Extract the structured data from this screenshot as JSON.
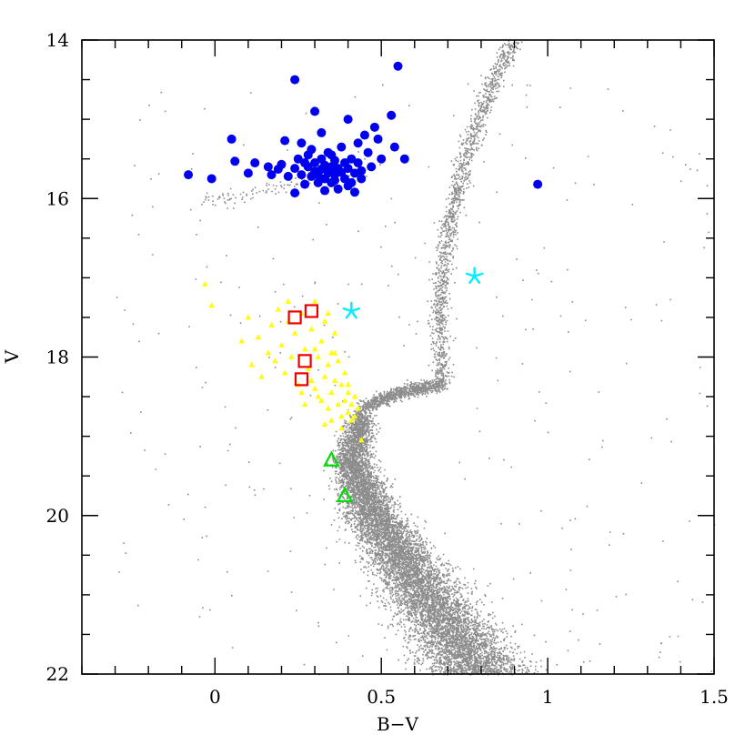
{
  "chart_data": {
    "type": "scatter",
    "title": "",
    "xlabel": "B−V",
    "ylabel": "V",
    "xlim": [
      -0.4,
      1.5
    ],
    "ylim": [
      22,
      14
    ],
    "y_inverted": true,
    "grid": false,
    "legend": "none",
    "x_ticks": [
      {
        "value": 0,
        "label": "0"
      },
      {
        "value": 0.5,
        "label": "0.5"
      },
      {
        "value": 1,
        "label": "1"
      },
      {
        "value": 1.5,
        "label": "1.5"
      }
    ],
    "y_ticks": [
      {
        "value": 14,
        "label": "14"
      },
      {
        "value": 16,
        "label": "16"
      },
      {
        "value": 18,
        "label": "18"
      },
      {
        "value": 20,
        "label": "20"
      },
      {
        "value": 22,
        "label": "22"
      }
    ],
    "colors": {
      "field_stars": "#8c8c8c",
      "horizontal_branch": "#0000ee",
      "blue_stragglers": "#ffff00",
      "open_squares": "#ee0000",
      "open_triangles": "#00dd00",
      "asterisks": "#00eeff"
    },
    "series": [
      {
        "marker": "filled-circle",
        "color": "#0000ee",
        "points": [
          [
            -0.08,
            15.7
          ],
          [
            -0.01,
            15.75
          ],
          [
            0.05,
            15.25
          ],
          [
            0.06,
            15.53
          ],
          [
            0.1,
            15.68
          ],
          [
            0.12,
            15.55
          ],
          [
            0.16,
            15.6
          ],
          [
            0.17,
            15.7
          ],
          [
            0.19,
            15.63
          ],
          [
            0.2,
            15.57
          ],
          [
            0.21,
            15.27
          ],
          [
            0.22,
            15.72
          ],
          [
            0.24,
            14.5
          ],
          [
            0.24,
            15.62
          ],
          [
            0.25,
            15.5
          ],
          [
            0.26,
            15.7
          ],
          [
            0.26,
            15.3
          ],
          [
            0.27,
            15.82
          ],
          [
            0.28,
            15.6
          ],
          [
            0.28,
            15.45
          ],
          [
            0.29,
            15.38
          ],
          [
            0.29,
            15.72
          ],
          [
            0.3,
            14.9
          ],
          [
            0.3,
            15.55
          ],
          [
            0.3,
            15.66
          ],
          [
            0.31,
            15.8
          ],
          [
            0.31,
            15.7
          ],
          [
            0.32,
            15.5
          ],
          [
            0.32,
            15.63
          ],
          [
            0.32,
            15.17
          ],
          [
            0.33,
            15.58
          ],
          [
            0.33,
            15.75
          ],
          [
            0.34,
            15.68
          ],
          [
            0.34,
            15.42
          ],
          [
            0.35,
            15.6
          ],
          [
            0.35,
            15.8
          ],
          [
            0.36,
            15.7
          ],
          [
            0.36,
            15.52
          ],
          [
            0.37,
            15.62
          ],
          [
            0.37,
            15.88
          ],
          [
            0.38,
            15.35
          ],
          [
            0.38,
            15.67
          ],
          [
            0.39,
            15.75
          ],
          [
            0.39,
            15.55
          ],
          [
            0.4,
            15.0
          ],
          [
            0.4,
            15.62
          ],
          [
            0.41,
            15.8
          ],
          [
            0.41,
            15.5
          ],
          [
            0.42,
            15.92
          ],
          [
            0.42,
            15.68
          ],
          [
            0.43,
            15.3
          ],
          [
            0.43,
            15.55
          ],
          [
            0.44,
            15.75
          ],
          [
            0.45,
            15.2
          ],
          [
            0.46,
            15.42
          ],
          [
            0.47,
            15.6
          ],
          [
            0.48,
            15.1
          ],
          [
            0.49,
            15.25
          ],
          [
            0.5,
            15.5
          ],
          [
            0.53,
            14.95
          ],
          [
            0.54,
            15.35
          ],
          [
            0.55,
            14.33
          ],
          [
            0.57,
            15.5
          ],
          [
            0.97,
            15.82
          ],
          [
            0.33,
            15.9
          ],
          [
            0.24,
            15.93
          ],
          [
            0.35,
            15.45
          ],
          [
            0.27,
            15.55
          ],
          [
            0.31,
            15.66
          ],
          [
            0.36,
            15.77
          ],
          [
            0.4,
            15.84
          ],
          [
            0.44,
            15.65
          ]
        ]
      },
      {
        "marker": "filled-triangle",
        "color": "#ffff00",
        "points": [
          [
            -0.03,
            17.08
          ],
          [
            -0.01,
            17.35
          ],
          [
            0.08,
            17.8
          ],
          [
            0.1,
            17.5
          ],
          [
            0.11,
            18.1
          ],
          [
            0.13,
            17.75
          ],
          [
            0.14,
            18.25
          ],
          [
            0.16,
            17.95
          ],
          [
            0.17,
            17.6
          ],
          [
            0.18,
            18.05
          ],
          [
            0.19,
            17.4
          ],
          [
            0.2,
            17.85
          ],
          [
            0.21,
            18.2
          ],
          [
            0.22,
            17.55
          ],
          [
            0.23,
            18.0
          ],
          [
            0.24,
            17.7
          ],
          [
            0.25,
            18.35
          ],
          [
            0.26,
            17.45
          ],
          [
            0.27,
            17.9
          ],
          [
            0.28,
            18.15
          ],
          [
            0.29,
            17.65
          ],
          [
            0.3,
            18.4
          ],
          [
            0.3,
            17.3
          ],
          [
            0.31,
            18.0
          ],
          [
            0.32,
            18.55
          ],
          [
            0.32,
            17.8
          ],
          [
            0.33,
            18.25
          ],
          [
            0.33,
            17.55
          ],
          [
            0.34,
            18.65
          ],
          [
            0.34,
            18.1
          ],
          [
            0.35,
            17.95
          ],
          [
            0.35,
            18.45
          ],
          [
            0.36,
            17.7
          ],
          [
            0.36,
            18.3
          ],
          [
            0.37,
            18.6
          ],
          [
            0.37,
            18.05
          ],
          [
            0.38,
            18.75
          ],
          [
            0.38,
            18.35
          ],
          [
            0.39,
            18.2
          ],
          [
            0.39,
            18.55
          ],
          [
            0.4,
            18.7
          ],
          [
            0.4,
            18.45
          ],
          [
            0.41,
            18.8
          ],
          [
            0.41,
            18.6
          ],
          [
            0.42,
            18.5
          ],
          [
            0.42,
            18.75
          ],
          [
            0.43,
            18.65
          ],
          [
            0.44,
            19.05
          ],
          [
            0.36,
            17.95
          ],
          [
            0.34,
            17.45
          ],
          [
            0.31,
            18.5
          ],
          [
            0.29,
            18.3
          ],
          [
            0.27,
            18.6
          ],
          [
            0.38,
            18.9
          ],
          [
            0.4,
            18.35
          ],
          [
            0.35,
            18.8
          ],
          [
            0.33,
            18.85
          ],
          [
            0.3,
            17.9
          ],
          [
            0.22,
            17.3
          ],
          [
            0.26,
            18.45
          ]
        ]
      },
      {
        "marker": "open-square",
        "color": "#ee0000",
        "points": [
          [
            0.24,
            17.5
          ],
          [
            0.29,
            17.42
          ],
          [
            0.27,
            18.05
          ],
          [
            0.26,
            18.28
          ]
        ]
      },
      {
        "marker": "open-triangle",
        "color": "#00dd00",
        "points": [
          [
            0.35,
            19.3
          ],
          [
            0.39,
            19.75
          ]
        ]
      },
      {
        "marker": "asterisk",
        "color": "#00eeff",
        "points": [
          [
            0.41,
            17.42
          ],
          [
            0.78,
            16.98
          ]
        ]
      },
      {
        "marker": "dot",
        "color": "#8c8c8c",
        "points": "dense field of several thousand small grey points (main sequence, subgiant and red giant branches)"
      }
    ]
  }
}
